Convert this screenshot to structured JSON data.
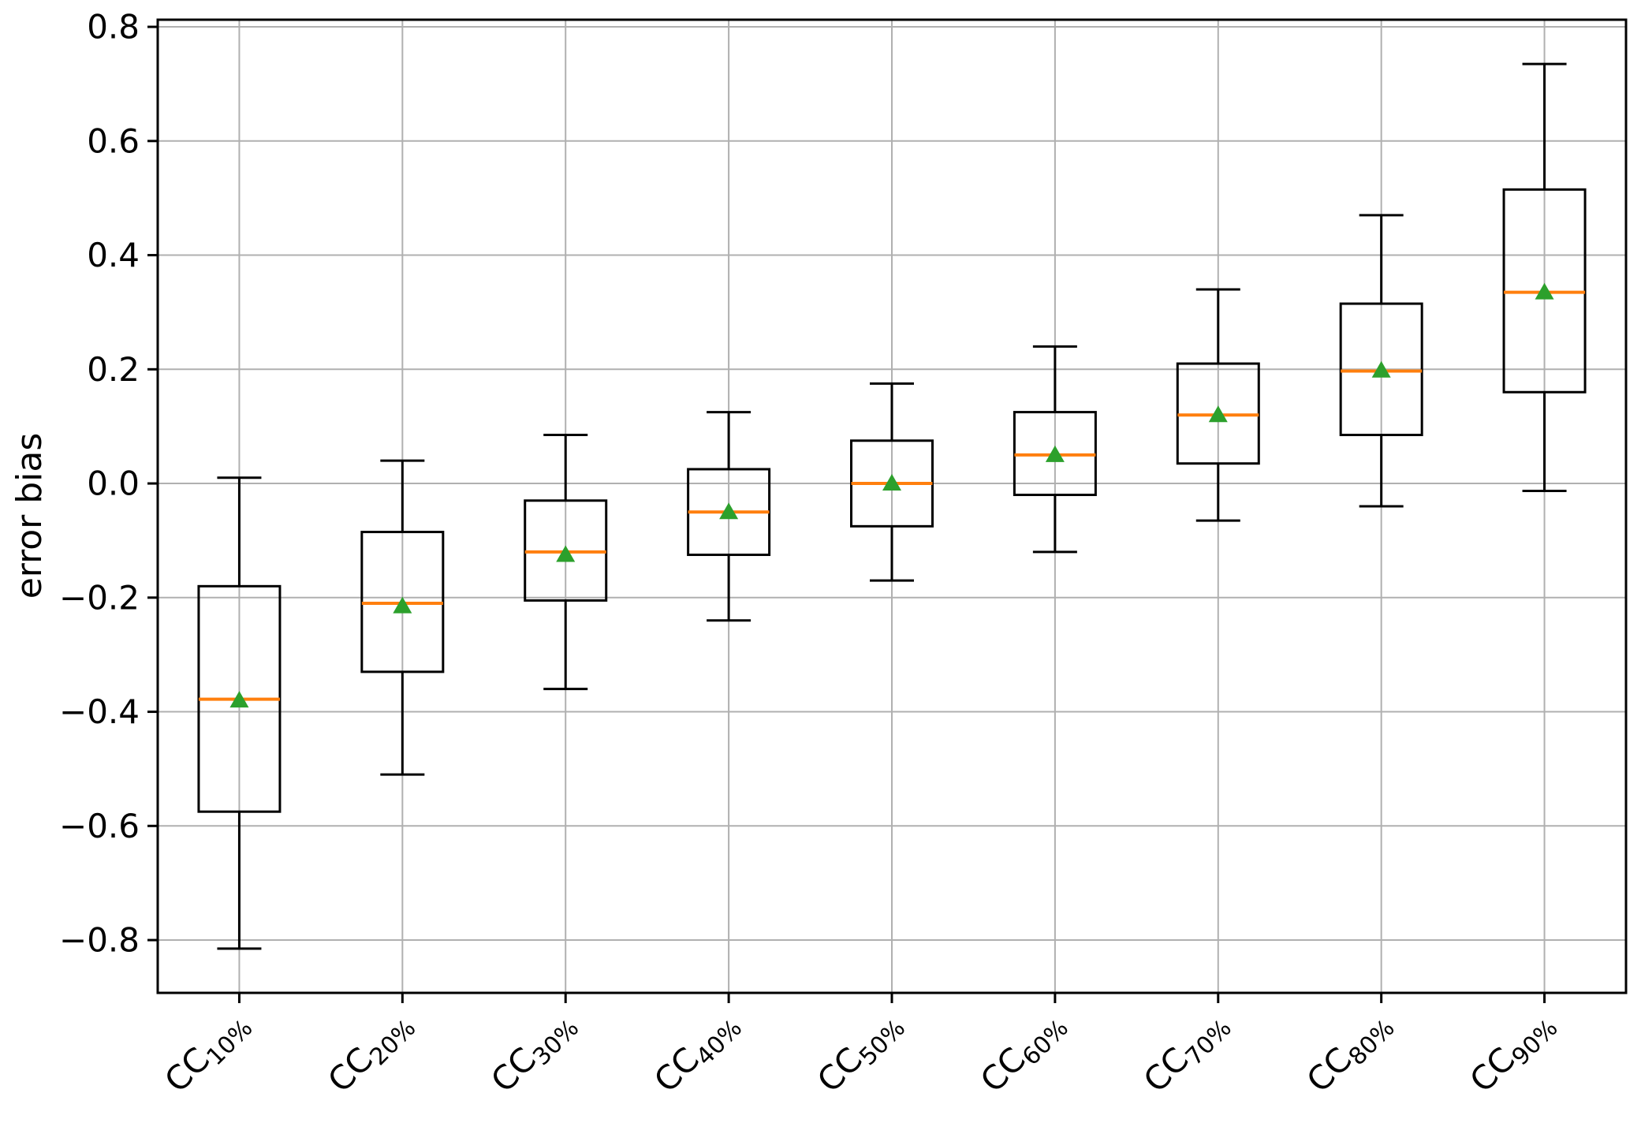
{
  "figure": {
    "background": "#ffffff",
    "title": ""
  },
  "chart_data": {
    "type": "boxplot",
    "title": "",
    "xlabel": "",
    "ylabel": "error bias",
    "grid": true,
    "legend": "none",
    "ylim": [
      -0.8925,
      0.8125
    ],
    "yticks": [
      0.8,
      0.6,
      0.4,
      0.2,
      0.0,
      -0.2,
      -0.4,
      -0.6,
      -0.8
    ],
    "ytick_labels": [
      "0.8",
      "0.6",
      "0.4",
      "0.2",
      "0.0",
      "−0.2",
      "−0.4",
      "−0.6",
      "−0.8"
    ],
    "categories": [
      {
        "main": "CC",
        "sub": "10%"
      },
      {
        "main": "CC",
        "sub": "20%"
      },
      {
        "main": "CC",
        "sub": "30%"
      },
      {
        "main": "CC",
        "sub": "40%"
      },
      {
        "main": "CC",
        "sub": "50%"
      },
      {
        "main": "CC",
        "sub": "60%"
      },
      {
        "main": "CC",
        "sub": "70%"
      },
      {
        "main": "CC",
        "sub": "80%"
      },
      {
        "main": "CC",
        "sub": "90%"
      }
    ],
    "category_label_rotation_deg": 45,
    "series": [
      {
        "label": "CC 10%",
        "whisker_low": -0.815,
        "q1": -0.575,
        "median": -0.378,
        "mean": -0.38,
        "q3": -0.18,
        "whisker_high": 0.01
      },
      {
        "label": "CC 20%",
        "whisker_low": -0.51,
        "q1": -0.33,
        "median": -0.21,
        "mean": -0.215,
        "q3": -0.085,
        "whisker_high": 0.04
      },
      {
        "label": "CC 30%",
        "whisker_low": -0.36,
        "q1": -0.205,
        "median": -0.12,
        "mean": -0.125,
        "q3": -0.03,
        "whisker_high": 0.085
      },
      {
        "label": "CC 40%",
        "whisker_low": -0.24,
        "q1": -0.125,
        "median": -0.05,
        "mean": -0.05,
        "q3": 0.025,
        "whisker_high": 0.125
      },
      {
        "label": "CC 50%",
        "whisker_low": -0.17,
        "q1": -0.075,
        "median": 0.0,
        "mean": 0.0,
        "q3": 0.075,
        "whisker_high": 0.175
      },
      {
        "label": "CC 60%",
        "whisker_low": -0.12,
        "q1": -0.02,
        "median": 0.05,
        "mean": 0.05,
        "q3": 0.125,
        "whisker_high": 0.24
      },
      {
        "label": "CC 70%",
        "whisker_low": -0.065,
        "q1": 0.035,
        "median": 0.12,
        "mean": 0.12,
        "q3": 0.21,
        "whisker_high": 0.34
      },
      {
        "label": "CC 80%",
        "whisker_low": -0.04,
        "q1": 0.085,
        "median": 0.197,
        "mean": 0.198,
        "q3": 0.315,
        "whisker_high": 0.47
      },
      {
        "label": "CC 90%",
        "whisker_low": -0.013,
        "q1": 0.16,
        "median": 0.335,
        "mean": 0.335,
        "q3": 0.515,
        "whisker_high": 0.735
      }
    ],
    "mean_marker": "triangle-up",
    "colors": {
      "box": "#000000",
      "whisker": "#000000",
      "median": "#ff7f0e",
      "mean_marker": "#2ca02c",
      "grid": "#b0b0b0",
      "spine": "#000000",
      "background": "#ffffff"
    }
  }
}
